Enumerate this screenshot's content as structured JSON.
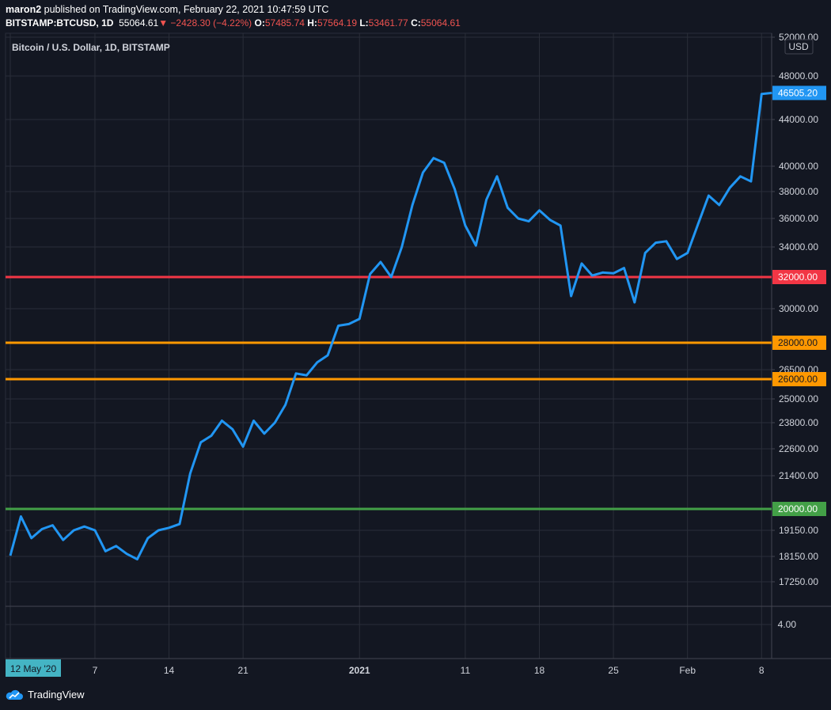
{
  "header": {
    "author": "maron2",
    "published_text": "published on TradingView.com, February 22, 2021 10:47:59 UTC",
    "symbol": "BITSTAMP:BTCUSD, 1D",
    "last": "55064.61",
    "change": "−2428.30 (−4.22%)",
    "o_label": "O:",
    "o_value": "57485.74",
    "h_label": "H:",
    "h_value": "57564.19",
    "l_label": "L:",
    "l_value": "53461.77",
    "c_label": "C:",
    "c_value": "55064.61"
  },
  "footer": {
    "brand": "TradingView"
  },
  "colors": {
    "background": "#131722",
    "price_line": "#2196f3",
    "red_line": "#f23645",
    "orange_line": "#ff9800",
    "green_line": "#43a047",
    "grid": "#2a2e39"
  },
  "chart_data": {
    "type": "line",
    "title": "Bitcoin / U.S. Dollar, 1D, BITSTAMP",
    "currency_label": "USD",
    "y_scale": "non-linear price scale",
    "y_ticks": [
      52000,
      48000,
      44000,
      40000,
      38000,
      36000,
      34000,
      30000,
      26500,
      25000,
      23800,
      22600,
      21400,
      19150,
      18150,
      17250
    ],
    "y_tick_labels": [
      "52000.00",
      "48000.00",
      "44000.00",
      "40000.00",
      "38000.00",
      "36000.00",
      "34000.00",
      "30000.00",
      "26500.00",
      "25000.00",
      "23800.00",
      "22600.00",
      "21400.00",
      "19150.00",
      "18150.00",
      "17250.00"
    ],
    "lower_pane_tick": "4.00",
    "x_tick_labels": [
      {
        "label": "12 May '20",
        "highlight": true,
        "index": 0
      },
      {
        "label": "7",
        "index": 8
      },
      {
        "label": "14",
        "index": 15
      },
      {
        "label": "21",
        "index": 22
      },
      {
        "label": "2021",
        "bold": true,
        "index": 33
      },
      {
        "label": "11",
        "index": 43
      },
      {
        "label": "18",
        "index": 50
      },
      {
        "label": "25",
        "index": 57
      },
      {
        "label": "Feb",
        "index": 64
      },
      {
        "label": "8",
        "index": 71
      }
    ],
    "series": [
      {
        "color": "#2196f3",
        "values": [
          18180,
          19700,
          18850,
          19200,
          19350,
          18780,
          19150,
          19300,
          19150,
          18350,
          18550,
          18250,
          18050,
          18850,
          19150,
          19250,
          19400,
          21500,
          22900,
          23200,
          23900,
          23500,
          22700,
          23900,
          23300,
          23800,
          24700,
          26300,
          26200,
          26900,
          27300,
          29000,
          29100,
          29400,
          32200,
          33000,
          32000,
          34000,
          37000,
          39500,
          40700,
          40300,
          38200,
          35500,
          34100,
          37400,
          39200,
          36800,
          36000,
          35800,
          36600,
          35900,
          35500,
          30800,
          32900,
          32100,
          32300,
          32250,
          32600,
          30400,
          33600,
          34300,
          34400,
          33200,
          33600,
          35600,
          37700,
          37000,
          38300,
          39200,
          38800,
          46400,
          46505
        ]
      }
    ],
    "horizontal_levels": [
      {
        "value": 32000,
        "label": "32000.00",
        "color": "#f23645"
      },
      {
        "value": 28000,
        "label": "28000.00",
        "color": "#ff9800"
      },
      {
        "value": 26000,
        "label": "26000.00",
        "color": "#ff9800"
      },
      {
        "value": 20000,
        "label": "20000.00",
        "color": "#43a047"
      }
    ],
    "last_price_label": "46505.20"
  }
}
